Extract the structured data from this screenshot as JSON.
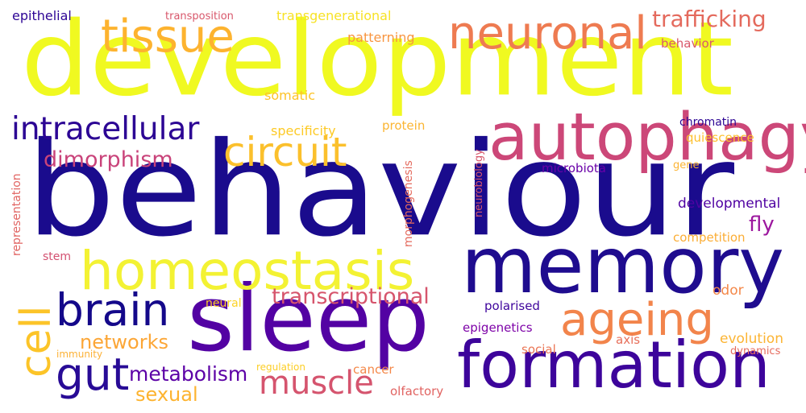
{
  "words": [
    {
      "text": "development",
      "color": "#f0f921"
    },
    {
      "text": "behaviour",
      "color": "#1a0b8d"
    },
    {
      "text": "memory",
      "color": "#1f0c8f"
    },
    {
      "text": "sleep",
      "color": "#5302a3"
    },
    {
      "text": "formation",
      "color": "#3d049b"
    },
    {
      "text": "autophagy",
      "color": "#cc4778"
    },
    {
      "text": "homeostasis",
      "color": "#f3f233"
    },
    {
      "text": "neuronal",
      "color": "#ee7b51"
    },
    {
      "text": "tissue",
      "color": "#fdb32f"
    },
    {
      "text": "circuit",
      "color": "#fbc02c"
    },
    {
      "text": "brain",
      "color": "#14088a"
    },
    {
      "text": "ageing",
      "color": "#f2844b"
    },
    {
      "text": "gut",
      "color": "#280b96"
    },
    {
      "text": "cell",
      "color": "#fcc428"
    },
    {
      "text": "muscle",
      "color": "#d5546e"
    },
    {
      "text": "intracellular",
      "color": "#2c0594"
    },
    {
      "text": "trafficking",
      "color": "#e46a5d"
    },
    {
      "text": "transcriptional",
      "color": "#d6556d"
    },
    {
      "text": "metabolism",
      "color": "#5c01a6"
    },
    {
      "text": "dimorphism",
      "color": "#c9437a"
    },
    {
      "text": "networks",
      "color": "#fca636"
    },
    {
      "text": "sexual",
      "color": "#fdb32f"
    },
    {
      "text": "fly",
      "color": "#9c179e"
    },
    {
      "text": "developmental",
      "color": "#5002a2"
    },
    {
      "text": "epithelial",
      "color": "#2e0595"
    },
    {
      "text": "transposition",
      "color": "#d8576b"
    },
    {
      "text": "transgenerational",
      "color": "#f7e225"
    },
    {
      "text": "patterning",
      "color": "#f89540"
    },
    {
      "text": "behavior",
      "color": "#d9586a"
    },
    {
      "text": "somatic",
      "color": "#fdc328"
    },
    {
      "text": "specificity",
      "color": "#fdca26"
    },
    {
      "text": "protein",
      "color": "#fbb532"
    },
    {
      "text": "chromatin",
      "color": "#2c0594"
    },
    {
      "text": "quiescence",
      "color": "#fdbf2c"
    },
    {
      "text": "microbiota",
      "color": "#6900a8"
    },
    {
      "text": "gene",
      "color": "#fcb433"
    },
    {
      "text": "competition",
      "color": "#fbad34"
    },
    {
      "text": "representation",
      "color": "#e16462"
    },
    {
      "text": "morphogenesis",
      "color": "#e46a5d"
    },
    {
      "text": "neurobiology",
      "color": "#d8576b"
    },
    {
      "text": "stem",
      "color": "#d35171"
    },
    {
      "text": "neural",
      "color": "#fcd225"
    },
    {
      "text": "polarised",
      "color": "#3e049c"
    },
    {
      "text": "odor",
      "color": "#f48849"
    },
    {
      "text": "epigenetics",
      "color": "#7e03a8"
    },
    {
      "text": "axis",
      "color": "#e76f5a"
    },
    {
      "text": "evolution",
      "color": "#fcb433"
    },
    {
      "text": "social",
      "color": "#eb7655"
    },
    {
      "text": "immunity",
      "color": "#fcb136"
    },
    {
      "text": "regulation",
      "color": "#fcce25"
    },
    {
      "text": "cancer",
      "color": "#f48849"
    },
    {
      "text": "dynamics",
      "color": "#e56b5d"
    },
    {
      "text": "olfactory",
      "color": "#e16462"
    }
  ]
}
